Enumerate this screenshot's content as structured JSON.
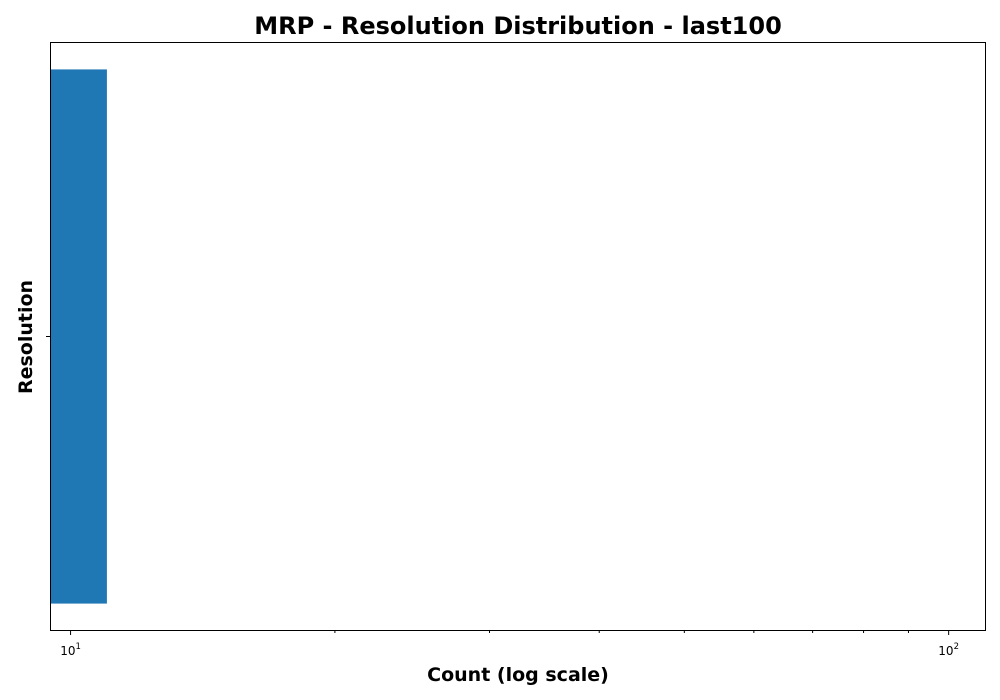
{
  "chart_data": {
    "type": "bar",
    "orientation": "horizontal",
    "title": "MRP - Resolution Distribution - last100",
    "xlabel": "Count (log scale)",
    "ylabel": "Resolution",
    "x_scale": "log",
    "xlim": [
      9.5,
      110
    ],
    "x_major_ticks": [
      {
        "value": 10,
        "base": "10",
        "exp": "1"
      },
      {
        "value": 100,
        "base": "10",
        "exp": "2"
      }
    ],
    "x_minor_ticks": [
      20,
      30,
      40,
      50,
      60,
      70,
      80,
      90
    ],
    "categories": [
      ""
    ],
    "values": [
      11
    ],
    "bar_color": "#1f77b4",
    "grid": false,
    "legend": "none"
  }
}
